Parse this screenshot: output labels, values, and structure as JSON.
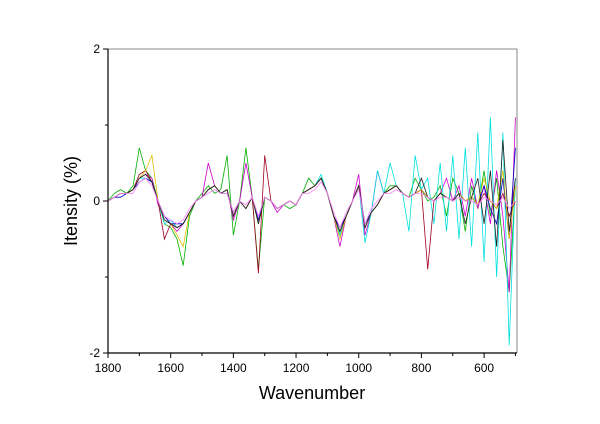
{
  "chart_data": {
    "type": "line",
    "title": "",
    "xlabel": "Wavenumber",
    "ylabel": "Itensity (%)",
    "xlim": [
      1800,
      495
    ],
    "ylim": [
      -2,
      2
    ],
    "x_reversed": true,
    "grid": false,
    "legend": "none",
    "xticks": [
      1800,
      1600,
      1400,
      1200,
      1000,
      800,
      600
    ],
    "xtick_labels": [
      "1800",
      "1600",
      "1400",
      "1200",
      "1000",
      "800",
      "600"
    ],
    "yticks": [
      -2,
      0,
      2
    ],
    "ytick_labels": [
      "-2",
      "0",
      "2"
    ],
    "x": [
      1800,
      1780,
      1760,
      1740,
      1720,
      1700,
      1680,
      1660,
      1640,
      1620,
      1600,
      1580,
      1560,
      1540,
      1520,
      1500,
      1480,
      1460,
      1440,
      1420,
      1400,
      1380,
      1360,
      1340,
      1320,
      1300,
      1280,
      1260,
      1240,
      1220,
      1200,
      1180,
      1160,
      1140,
      1120,
      1100,
      1080,
      1060,
      1040,
      1020,
      1000,
      980,
      960,
      940,
      920,
      900,
      880,
      860,
      840,
      820,
      800,
      780,
      760,
      740,
      720,
      700,
      680,
      660,
      640,
      620,
      600,
      580,
      560,
      540,
      520,
      500
    ],
    "series": [
      {
        "color": "#00b000",
        "values": [
          0.0,
          0.1,
          0.15,
          0.1,
          0.2,
          0.7,
          0.4,
          0.3,
          0.0,
          -0.3,
          -0.35,
          -0.5,
          -0.85,
          -0.2,
          0.0,
          0.1,
          0.2,
          0.1,
          0.15,
          0.6,
          -0.45,
          0.0,
          0.7,
          0.05,
          -0.9,
          0.05,
          0.0,
          -0.1,
          -0.05,
          -0.1,
          -0.05,
          0.1,
          0.3,
          0.2,
          0.3,
          0.1,
          -0.2,
          -0.45,
          -0.2,
          0.0,
          0.2,
          -0.35,
          -0.15,
          -0.05,
          0.1,
          0.2,
          0.2,
          0.1,
          0.05,
          0.3,
          0.15,
          0.0,
          0.05,
          0.2,
          -0.2,
          0.3,
          0.1,
          -0.4,
          0.2,
          -0.1,
          0.4,
          -0.2,
          0.3,
          -0.6,
          -1.2,
          0.2
        ]
      },
      {
        "color": "#cc00cc",
        "values": [
          0.0,
          0.05,
          0.1,
          0.1,
          0.15,
          0.3,
          0.35,
          0.3,
          -0.05,
          -0.2,
          -0.3,
          -0.4,
          -0.3,
          -0.15,
          0.0,
          0.05,
          0.5,
          0.2,
          0.1,
          0.15,
          -0.25,
          0.0,
          0.5,
          0.05,
          -0.3,
          0.05,
          0.0,
          -0.15,
          -0.05,
          0.0,
          -0.05,
          0.1,
          0.15,
          0.2,
          0.3,
          0.1,
          -0.2,
          -0.6,
          -0.2,
          0.0,
          0.35,
          -0.45,
          -0.15,
          0.4,
          0.1,
          0.15,
          0.2,
          0.1,
          0.05,
          0.1,
          0.15,
          0.05,
          0.0,
          0.1,
          0.3,
          0.0,
          0.2,
          -0.2,
          0.3,
          -0.1,
          0.2,
          -0.3,
          0.4,
          -0.2,
          -1.2,
          1.1
        ]
      },
      {
        "color": "#00e0e0",
        "values": [
          0.0,
          0.05,
          0.1,
          0.1,
          0.15,
          0.3,
          0.3,
          0.25,
          0.0,
          -0.3,
          -0.25,
          -0.35,
          -0.3,
          -0.15,
          0.0,
          0.05,
          0.15,
          0.2,
          0.1,
          0.15,
          -0.2,
          0.0,
          -0.1,
          0.05,
          -0.3,
          0.05,
          0.0,
          -0.1,
          -0.05,
          0.0,
          -0.05,
          0.1,
          0.15,
          0.2,
          0.35,
          0.1,
          -0.2,
          -0.45,
          -0.2,
          0.0,
          0.2,
          -0.55,
          -0.15,
          0.4,
          0.1,
          0.5,
          0.2,
          0.1,
          -0.4,
          0.6,
          0.15,
          0.3,
          -0.3,
          0.5,
          -0.4,
          0.6,
          -0.5,
          0.7,
          -0.6,
          0.9,
          -0.8,
          1.1,
          -1.0,
          0.9,
          -1.9,
          0.3
        ]
      },
      {
        "color": "#a00020",
        "values": [
          0.0,
          0.05,
          0.1,
          0.1,
          0.15,
          0.35,
          0.4,
          0.25,
          0.0,
          -0.5,
          -0.3,
          -0.35,
          -0.3,
          -0.15,
          0.0,
          0.05,
          0.15,
          0.2,
          0.1,
          0.15,
          -0.2,
          0.0,
          -0.1,
          0.05,
          -0.95,
          0.6,
          0.0,
          -0.1,
          -0.05,
          0.0,
          -0.05,
          0.1,
          0.15,
          0.2,
          0.3,
          0.1,
          -0.2,
          -0.4,
          -0.2,
          0.0,
          0.2,
          -0.35,
          -0.15,
          -0.05,
          0.1,
          0.15,
          0.2,
          0.1,
          0.05,
          0.1,
          0.15,
          -0.9,
          0.0,
          0.1,
          0.05,
          0.0,
          0.1,
          0.0,
          0.05,
          -0.05,
          0.1,
          0.0,
          -0.1,
          0.1,
          -0.2,
          0.0
        ]
      },
      {
        "color": "#0000c0",
        "values": [
          0.0,
          0.05,
          0.05,
          0.1,
          0.15,
          0.25,
          0.3,
          0.25,
          0.0,
          -0.2,
          -0.3,
          -0.3,
          -0.3,
          -0.15,
          0.0,
          0.05,
          0.15,
          0.2,
          0.1,
          0.1,
          -0.15,
          0.0,
          -0.1,
          0.05,
          -0.25,
          0.05,
          0.0,
          -0.1,
          -0.05,
          0.0,
          -0.05,
          0.1,
          0.15,
          0.2,
          0.3,
          0.1,
          -0.2,
          -0.35,
          -0.2,
          0.0,
          0.2,
          -0.3,
          -0.15,
          -0.05,
          0.1,
          0.15,
          0.2,
          0.1,
          0.05,
          0.1,
          0.15,
          0.05,
          0.0,
          0.1,
          0.05,
          0.0,
          0.1,
          0.0,
          0.05,
          -0.05,
          0.2,
          -0.1,
          -0.3,
          0.3,
          -0.5,
          0.7
        ]
      },
      {
        "color": "#e0c000",
        "values": [
          0.0,
          0.05,
          0.1,
          0.1,
          0.15,
          0.3,
          0.4,
          0.6,
          0.0,
          -0.25,
          -0.3,
          -0.45,
          -0.6,
          -0.15,
          0.0,
          0.05,
          0.15,
          0.2,
          0.1,
          0.15,
          -0.2,
          0.0,
          -0.1,
          0.05,
          -0.3,
          0.05,
          0.0,
          -0.1,
          -0.05,
          0.0,
          -0.05,
          0.1,
          0.15,
          0.2,
          0.3,
          0.1,
          -0.2,
          -0.5,
          -0.2,
          0.0,
          0.2,
          -0.35,
          -0.15,
          -0.05,
          0.1,
          0.15,
          0.2,
          0.1,
          0.05,
          0.1,
          0.15,
          0.05,
          0.0,
          0.1,
          0.05,
          0.0,
          0.1,
          0.0,
          0.05,
          -0.05,
          0.3,
          0.0,
          -0.1,
          0.4,
          -0.5,
          0.2
        ]
      },
      {
        "color": "#202020",
        "values": [
          0.0,
          0.05,
          0.1,
          0.1,
          0.15,
          0.3,
          0.35,
          0.25,
          0.0,
          -0.25,
          -0.3,
          -0.35,
          -0.3,
          -0.15,
          0.0,
          0.05,
          0.15,
          0.2,
          0.1,
          0.15,
          -0.2,
          0.0,
          -0.1,
          0.05,
          -0.3,
          0.05,
          0.0,
          -0.1,
          -0.05,
          0.0,
          -0.05,
          0.1,
          0.15,
          0.2,
          0.3,
          0.1,
          -0.2,
          -0.4,
          -0.2,
          0.0,
          0.2,
          -0.35,
          -0.15,
          -0.05,
          0.1,
          0.15,
          0.2,
          0.1,
          0.05,
          0.1,
          0.3,
          0.05,
          0.0,
          0.1,
          0.05,
          0.0,
          0.1,
          -0.3,
          0.05,
          0.3,
          -0.3,
          0.4,
          -0.6,
          0.8,
          -0.4,
          0.3
        ]
      },
      {
        "color": "#ff80ff",
        "values": [
          0.0,
          0.05,
          0.1,
          0.1,
          0.1,
          0.25,
          0.3,
          0.2,
          0.0,
          -0.2,
          -0.25,
          -0.3,
          -0.25,
          -0.1,
          0.0,
          0.05,
          0.1,
          0.15,
          0.1,
          0.1,
          -0.15,
          0.0,
          -0.05,
          0.05,
          -0.2,
          0.05,
          0.0,
          -0.1,
          -0.05,
          0.0,
          -0.05,
          0.1,
          0.1,
          0.15,
          0.25,
          0.1,
          -0.15,
          -0.35,
          -0.15,
          0.0,
          0.15,
          -0.3,
          -0.1,
          0.0,
          0.1,
          0.1,
          0.15,
          0.1,
          0.05,
          0.1,
          0.1,
          0.05,
          0.0,
          0.05,
          0.05,
          0.0,
          0.05,
          0.0,
          0.0,
          -0.05,
          0.05,
          0.0,
          -0.05,
          0.05,
          -0.1,
          0.0
        ]
      }
    ]
  }
}
